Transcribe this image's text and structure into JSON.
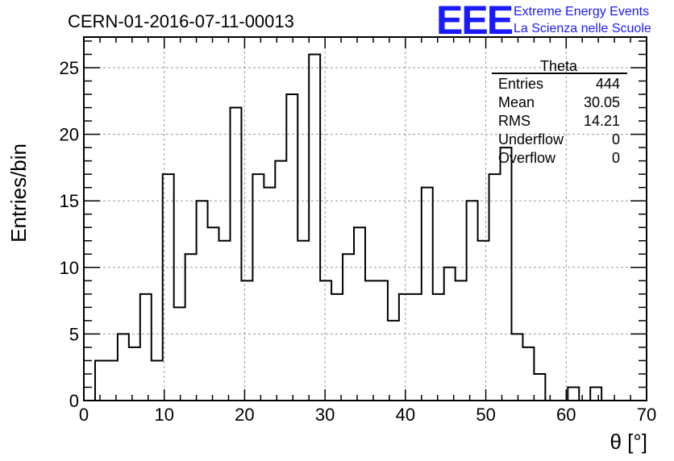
{
  "header": {
    "run_id": "CERN-01-2016-07-11-00013",
    "logo_mark": "EEE",
    "logo_line1": "Extreme Energy Events",
    "logo_line2": "La Scienza nelle Scuole",
    "logo_color": "#1a1aff"
  },
  "stats_box": {
    "name": "Theta",
    "rows": [
      {
        "label": "Entries",
        "value": "444"
      },
      {
        "label": "Mean",
        "value": "30.05"
      },
      {
        "label": "RMS",
        "value": "14.21"
      },
      {
        "label": "Underflow",
        "value": "0"
      },
      {
        "label": "Overflow",
        "value": "0"
      }
    ]
  },
  "chart_data": {
    "type": "histogram",
    "title": "CERN-01-2016-07-11-00013",
    "xlabel": "θ [°]",
    "ylabel": "Entries/bin",
    "xlim": [
      0,
      70
    ],
    "ylim": [
      0,
      27.3
    ],
    "bin_edges_start": 1.4,
    "bin_width": 1.4,
    "counts": [
      3,
      3,
      5,
      4,
      8,
      3,
      17,
      7,
      11,
      15,
      13,
      12,
      22,
      9,
      17,
      16,
      18,
      23,
      12,
      26,
      9,
      8,
      11,
      13,
      9,
      9,
      6,
      8,
      8,
      16,
      8,
      10,
      9,
      15,
      12,
      17,
      19,
      5,
      4,
      2,
      0,
      0,
      1,
      0,
      1
    ],
    "x_ticks": [
      0,
      10,
      20,
      30,
      40,
      50,
      60,
      70
    ],
    "y_ticks": [
      0,
      5,
      10,
      15,
      20,
      25
    ],
    "grid": true,
    "line_color": "#000000"
  }
}
